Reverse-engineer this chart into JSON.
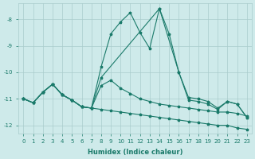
{
  "xlabel": "Humidex (Indice chaleur)",
  "background_color": "#ceeaea",
  "grid_color": "#aacccc",
  "line_color": "#1a7a6a",
  "xlim": [
    -0.5,
    23.5
  ],
  "ylim": [
    -12.3,
    -7.4
  ],
  "yticks": [
    -12,
    -11,
    -10,
    -9,
    -8
  ],
  "xticks": [
    0,
    1,
    2,
    3,
    4,
    5,
    6,
    7,
    8,
    9,
    10,
    11,
    12,
    13,
    14,
    15,
    16,
    17,
    18,
    19,
    20,
    21,
    22,
    23
  ],
  "line1_x": [
    0,
    1,
    2,
    3,
    4,
    5,
    6,
    7,
    8,
    9,
    10,
    11,
    12,
    13,
    14,
    15,
    16,
    17,
    18,
    19,
    20,
    21,
    22,
    23
  ],
  "line1_y": [
    -11.0,
    -11.15,
    -10.75,
    -10.45,
    -10.85,
    -11.05,
    -11.3,
    -11.35,
    -11.4,
    -11.45,
    -11.5,
    -11.55,
    -11.6,
    -11.65,
    -11.7,
    -11.75,
    -11.8,
    -11.85,
    -11.9,
    -11.95,
    -12.0,
    -12.0,
    -12.1,
    -12.15
  ],
  "line2_x": [
    0,
    1,
    2,
    3,
    4,
    5,
    6,
    7,
    8,
    9,
    10,
    11,
    12,
    13,
    14,
    15,
    16,
    17,
    18,
    19,
    20,
    21,
    22,
    23
  ],
  "line2_y": [
    -11.0,
    -11.15,
    -10.75,
    -10.45,
    -10.85,
    -11.05,
    -11.3,
    -11.35,
    -10.5,
    -10.3,
    -10.6,
    -10.8,
    -11.0,
    -11.1,
    -11.2,
    -11.25,
    -11.3,
    -11.35,
    -11.4,
    -11.45,
    -11.5,
    -11.5,
    -11.55,
    -11.65
  ],
  "line3_x": [
    0,
    1,
    2,
    3,
    4,
    5,
    6,
    7,
    8,
    9,
    10,
    11,
    12,
    13,
    14,
    15,
    16,
    17,
    18,
    19,
    20,
    21,
    22,
    23
  ],
  "line3_y": [
    -11.0,
    -11.15,
    -10.75,
    -10.45,
    -10.85,
    -11.05,
    -11.3,
    -11.35,
    -9.8,
    -8.55,
    -8.1,
    -7.75,
    -8.5,
    -9.1,
    -7.6,
    -8.55,
    -10.0,
    -11.05,
    -11.1,
    -11.2,
    -11.4,
    -11.1,
    -11.2,
    -11.7
  ],
  "line4_x": [
    0,
    1,
    2,
    3,
    4,
    5,
    6,
    7,
    8,
    14,
    16,
    17,
    18,
    19,
    20,
    21,
    22,
    23
  ],
  "line4_y": [
    -11.0,
    -11.15,
    -10.75,
    -10.45,
    -10.85,
    -11.05,
    -11.3,
    -11.35,
    -10.2,
    -7.6,
    -10.0,
    -10.95,
    -11.0,
    -11.1,
    -11.35,
    -11.1,
    -11.2,
    -11.7
  ]
}
